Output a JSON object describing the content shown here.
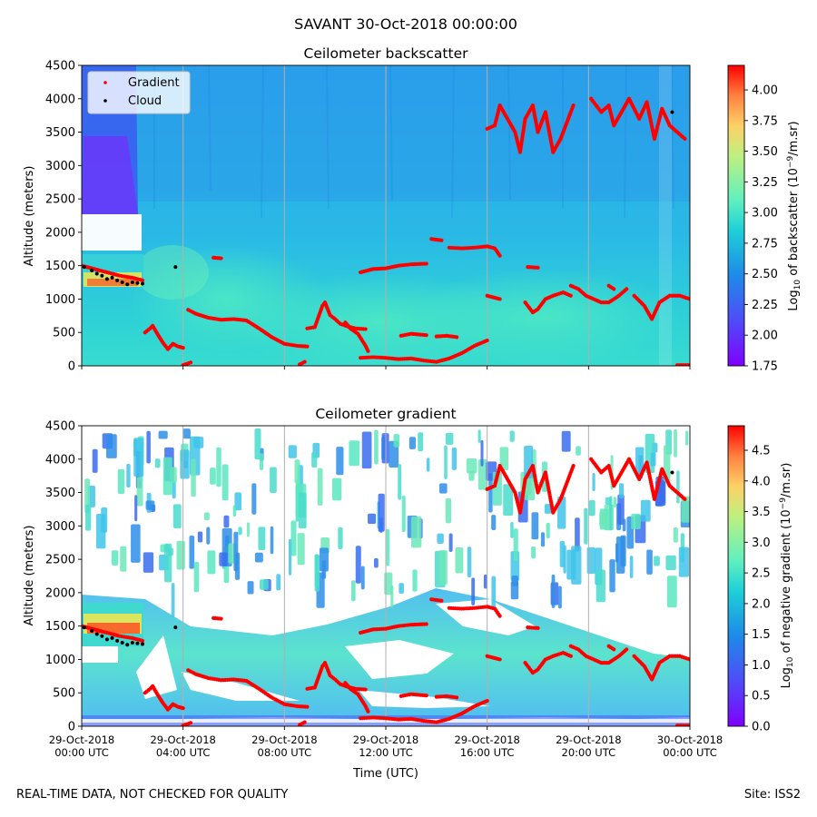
{
  "suptitle": "SAVANT 30-Oct-2018 00:00:00",
  "footer": {
    "left": "REAL-TIME DATA, NOT CHECKED FOR QUALITY",
    "right": "Site: ISS2"
  },
  "chart_data": [
    {
      "type": "heatmap",
      "title": "Ceilometer backscatter",
      "xlabel": "",
      "ylabel": "Altitude (meters)",
      "ylim": [
        0,
        4500
      ],
      "yticks": [
        0,
        500,
        1000,
        1500,
        2000,
        2500,
        3000,
        3500,
        4000,
        4500
      ],
      "xlim_hours": [
        0,
        24
      ],
      "xtick_hours": [
        0,
        4,
        8,
        12,
        16,
        20,
        24
      ],
      "xtick_labels": [],
      "colorbar": {
        "label": "Log10 of backscatter (10^-9/m.sr)",
        "range": [
          1.75,
          4.2
        ],
        "ticks": [
          "1.75",
          "2.00",
          "2.25",
          "2.50",
          "2.75",
          "3.00",
          "3.25",
          "3.50",
          "3.75",
          "4.00"
        ]
      },
      "legend": {
        "location": "upper-left",
        "entries": [
          "Gradient",
          "Cloud"
        ]
      },
      "series": [
        {
          "name": "Gradient",
          "color": "#ff0000",
          "segments": [
            [
              [
                0.0,
                1500
              ],
              [
                0.5,
                1450
              ],
              [
                1.0,
                1400
              ],
              [
                1.5,
                1350
              ],
              [
                2.0,
                1320
              ],
              [
                2.4,
                1280
              ]
            ],
            [
              [
                2.5,
                500
              ],
              [
                2.7,
                560
              ],
              [
                2.8,
                600
              ],
              [
                3.0,
                470
              ],
              [
                3.2,
                350
              ],
              [
                3.4,
                250
              ],
              [
                3.6,
                330
              ],
              [
                3.8,
                290
              ],
              [
                4.0,
                270
              ]
            ],
            [
              [
                4.2,
                840
              ],
              [
                4.5,
                780
              ],
              [
                5.0,
                720
              ],
              [
                5.5,
                690
              ],
              [
                6.0,
                700
              ],
              [
                6.5,
                680
              ],
              [
                7.0,
                560
              ],
              [
                7.5,
                430
              ],
              [
                8.0,
                330
              ],
              [
                8.5,
                300
              ],
              [
                8.9,
                290
              ]
            ],
            [
              [
                8.6,
                20
              ],
              [
                8.8,
                60
              ]
            ],
            [
              [
                5.2,
                1620
              ],
              [
                5.5,
                1610
              ]
            ],
            [
              [
                8.9,
                560
              ],
              [
                9.2,
                580
              ],
              [
                9.5,
                900
              ],
              [
                9.6,
                950
              ],
              [
                9.8,
                760
              ],
              [
                10.0,
                700
              ],
              [
                10.2,
                630
              ],
              [
                10.5,
                590
              ],
              [
                10.8,
                560
              ],
              [
                11.2,
                550
              ]
            ],
            [
              [
                10.4,
                650
              ],
              [
                10.6,
                560
              ],
              [
                10.9,
                480
              ],
              [
                11.2,
                300
              ],
              [
                11.3,
                220
              ]
            ],
            [
              [
                11.0,
                1400
              ],
              [
                11.5,
                1450
              ],
              [
                12.0,
                1460
              ],
              [
                12.5,
                1500
              ],
              [
                13.0,
                1520
              ],
              [
                13.6,
                1530
              ]
            ],
            [
              [
                11.0,
                120
              ],
              [
                11.5,
                130
              ],
              [
                12.0,
                120
              ],
              [
                12.5,
                100
              ],
              [
                13.0,
                110
              ],
              [
                13.5,
                80
              ],
              [
                14.0,
                60
              ],
              [
                14.5,
                110
              ],
              [
                15.0,
                190
              ],
              [
                15.5,
                300
              ],
              [
                16.0,
                380
              ]
            ],
            [
              [
                12.6,
                450
              ],
              [
                13.0,
                480
              ],
              [
                13.6,
                460
              ]
            ],
            [
              [
                14.0,
                440
              ],
              [
                14.4,
                450
              ],
              [
                14.8,
                430
              ]
            ],
            [
              [
                13.8,
                1900
              ],
              [
                14.2,
                1880
              ]
            ],
            [
              [
                14.5,
                1770
              ],
              [
                15.0,
                1760
              ],
              [
                15.5,
                1770
              ],
              [
                16.0,
                1790
              ],
              [
                16.3,
                1760
              ],
              [
                16.5,
                1650
              ]
            ],
            [
              [
                16.0,
                1050
              ],
              [
                16.5,
                1000
              ]
            ],
            [
              [
                17.6,
                1480
              ],
              [
                18.0,
                1470
              ]
            ],
            [
              [
                17.5,
                950
              ],
              [
                17.8,
                800
              ],
              [
                18.0,
                850
              ],
              [
                18.3,
                1000
              ],
              [
                18.6,
                1050
              ],
              [
                19.0,
                1100
              ],
              [
                19.3,
                1050
              ]
            ],
            [
              [
                19.3,
                1200
              ],
              [
                19.6,
                1150
              ],
              [
                19.9,
                1050
              ],
              [
                20.2,
                1000
              ],
              [
                20.5,
                950
              ],
              [
                20.8,
                950
              ],
              [
                21.2,
                1050
              ],
              [
                21.5,
                1150
              ]
            ],
            [
              [
                20.8,
                1200
              ],
              [
                21.0,
                1150
              ]
            ],
            [
              [
                21.8,
                1050
              ],
              [
                22.2,
                900
              ],
              [
                22.5,
                700
              ],
              [
                22.8,
                950
              ],
              [
                23.2,
                1050
              ],
              [
                23.6,
                1050
              ],
              [
                24.0,
                1000
              ]
            ],
            [
              [
                16.0,
                3550
              ],
              [
                16.3,
                3600
              ],
              [
                16.5,
                3900
              ],
              [
                16.8,
                3700
              ],
              [
                17.1,
                3500
              ],
              [
                17.3,
                3200
              ],
              [
                17.5,
                3700
              ],
              [
                17.8,
                3900
              ],
              [
                18.0,
                3500
              ],
              [
                18.3,
                3800
              ],
              [
                18.6,
                3200
              ],
              [
                18.9,
                3400
              ],
              [
                19.2,
                3700
              ],
              [
                19.4,
                3900
              ]
            ],
            [
              [
                20.1,
                4000
              ],
              [
                20.5,
                3800
              ],
              [
                20.8,
                3900
              ],
              [
                21.0,
                3600
              ],
              [
                21.3,
                3800
              ],
              [
                21.6,
                4000
              ],
              [
                22.0,
                3700
              ],
              [
                22.3,
                3950
              ],
              [
                22.6,
                3400
              ],
              [
                22.9,
                3850
              ],
              [
                23.2,
                3600
              ],
              [
                23.5,
                3500
              ],
              [
                23.8,
                3400
              ]
            ],
            [
              [
                23.5,
                10
              ],
              [
                24.0,
                10
              ]
            ],
            [
              [
                4.0,
                10
              ],
              [
                4.3,
                50
              ]
            ]
          ]
        },
        {
          "name": "Cloud",
          "color": "#000000",
          "points": [
            [
              0.1,
              1480
            ],
            [
              0.4,
              1430
            ],
            [
              0.6,
              1380
            ],
            [
              0.8,
              1350
            ],
            [
              1.0,
              1300
            ],
            [
              1.2,
              1320
            ],
            [
              1.4,
              1280
            ],
            [
              1.6,
              1250
            ],
            [
              1.8,
              1220
            ],
            [
              2.0,
              1250
            ],
            [
              2.2,
              1240
            ],
            [
              2.4,
              1230
            ],
            [
              3.7,
              1480
            ],
            [
              23.3,
              3800
            ]
          ]
        }
      ]
    },
    {
      "type": "heatmap",
      "title": "Ceilometer gradient",
      "xlabel": "Time (UTC)",
      "ylabel": "Altitude (meters)",
      "ylim": [
        0,
        4500
      ],
      "yticks": [
        0,
        500,
        1000,
        1500,
        2000,
        2500,
        3000,
        3500,
        4000,
        4500
      ],
      "xlim_hours": [
        0,
        24
      ],
      "xtick_hours": [
        0,
        4,
        8,
        12,
        16,
        20,
        24
      ],
      "xtick_labels": [
        [
          "29-Oct-2018",
          "00:00 UTC"
        ],
        [
          "29-Oct-2018",
          "04:00 UTC"
        ],
        [
          "29-Oct-2018",
          "08:00 UTC"
        ],
        [
          "29-Oct-2018",
          "12:00 UTC"
        ],
        [
          "29-Oct-2018",
          "16:00 UTC"
        ],
        [
          "29-Oct-2018",
          "20:00 UTC"
        ],
        [
          "30-Oct-2018",
          "00:00 UTC"
        ]
      ],
      "colorbar": {
        "label": "Log10 of negative gradient (10^-9/m.sr)",
        "range": [
          0.0,
          4.9
        ],
        "ticks": [
          "0.0",
          "0.5",
          "1.0",
          "1.5",
          "2.0",
          "2.5",
          "3.0",
          "3.5",
          "4.0",
          "4.5"
        ]
      },
      "series": [
        {
          "name": "Gradient",
          "color": "#ff0000",
          "same_as_panel": 0
        },
        {
          "name": "Cloud",
          "color": "#000000",
          "same_as_panel": 0
        }
      ]
    }
  ]
}
